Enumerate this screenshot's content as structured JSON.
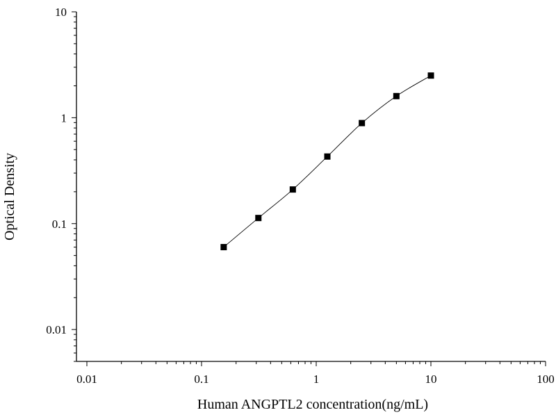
{
  "chart_data": {
    "type": "scatter",
    "xlabel": "Human ANGPTL2 concentration(ng/mL)",
    "ylabel": "Optical Density",
    "xscale": "log",
    "yscale": "log",
    "xlim": [
      0.01,
      100
    ],
    "ylim": [
      0.005,
      10
    ],
    "x_ticks": [
      "0.01",
      "0.1",
      "1",
      "10",
      "100"
    ],
    "y_ticks": [
      "0.01",
      "0.1",
      "1",
      "10"
    ],
    "grid": false,
    "series": [
      {
        "marker": "square",
        "fit_line": true,
        "x": [
          0.156,
          0.313,
          0.625,
          1.25,
          2.5,
          5,
          10
        ],
        "y": [
          0.06,
          0.113,
          0.21,
          0.43,
          0.89,
          1.6,
          2.5
        ]
      }
    ],
    "colors": {
      "marker": "#000000",
      "line": "#000000",
      "axis": "#000000"
    }
  }
}
